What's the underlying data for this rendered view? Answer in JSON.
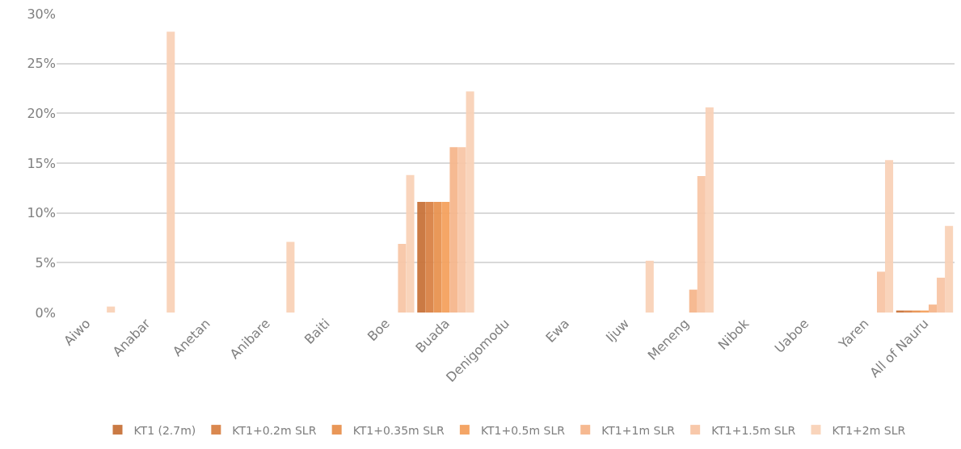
{
  "chart_data": {
    "type": "bar",
    "categories": [
      "Aiwo",
      "Anabar",
      "Anetan",
      "Anibare",
      "Baiti",
      "Boe",
      "Buada",
      "Denigomodu",
      "Ewa",
      "Ijuw",
      "Meneng",
      "Nibok",
      "Uaboe",
      "Yaren",
      "All of Nauru"
    ],
    "series": [
      {
        "name": "KT1 (2.7m)",
        "color": "#c8733a",
        "values": [
          0,
          0,
          0,
          0,
          0,
          0,
          11.1,
          0,
          0,
          0,
          0,
          0,
          0,
          0,
          0.2
        ]
      },
      {
        "name": "KT1+0.2m SLR",
        "color": "#d98246",
        "values": [
          0,
          0,
          0,
          0,
          0,
          0,
          11.1,
          0,
          0,
          0,
          0,
          0,
          0,
          0,
          0.2
        ]
      },
      {
        "name": "KT1+0.35m SLR",
        "color": "#e89250",
        "values": [
          0,
          0,
          0,
          0,
          0,
          0,
          11.1,
          0,
          0,
          0,
          0,
          0,
          0,
          0,
          0.2
        ]
      },
      {
        "name": "KT1+0.5m SLR",
        "color": "#f4a15e",
        "values": [
          0,
          0,
          0,
          0,
          0,
          0,
          11.1,
          0,
          0,
          0,
          0,
          0,
          0,
          0,
          0.2
        ]
      },
      {
        "name": "KT1+1m SLR",
        "color": "#f6b68c",
        "values": [
          0,
          0,
          0,
          0,
          0,
          0,
          16.6,
          0,
          0,
          0,
          2.3,
          0,
          0,
          0,
          0.8
        ]
      },
      {
        "name": "KT1+1.5m SLR",
        "color": "#f8c6a6",
        "values": [
          0,
          0,
          0,
          0,
          0,
          6.9,
          16.6,
          0,
          0,
          0,
          13.7,
          0,
          0,
          4.1,
          3.5
        ]
      },
      {
        "name": "KT1+2m SLR",
        "color": "#f9d2b8",
        "values": [
          0.6,
          28.2,
          0,
          7.1,
          0,
          13.8,
          22.2,
          0,
          0,
          5.2,
          20.6,
          0,
          0,
          15.3,
          8.7
        ]
      }
    ],
    "ylim": [
      0,
      30
    ],
    "yticks": [
      {
        "value": 0,
        "label": "0%"
      },
      {
        "value": 5,
        "label": "5%"
      },
      {
        "value": 10,
        "label": "10%"
      },
      {
        "value": 15,
        "label": "15%"
      },
      {
        "value": 20,
        "label": "20%"
      },
      {
        "value": 25,
        "label": "25%"
      },
      {
        "value": 30,
        "label": "30%"
      }
    ],
    "grid": "y",
    "legend": "bottom"
  }
}
